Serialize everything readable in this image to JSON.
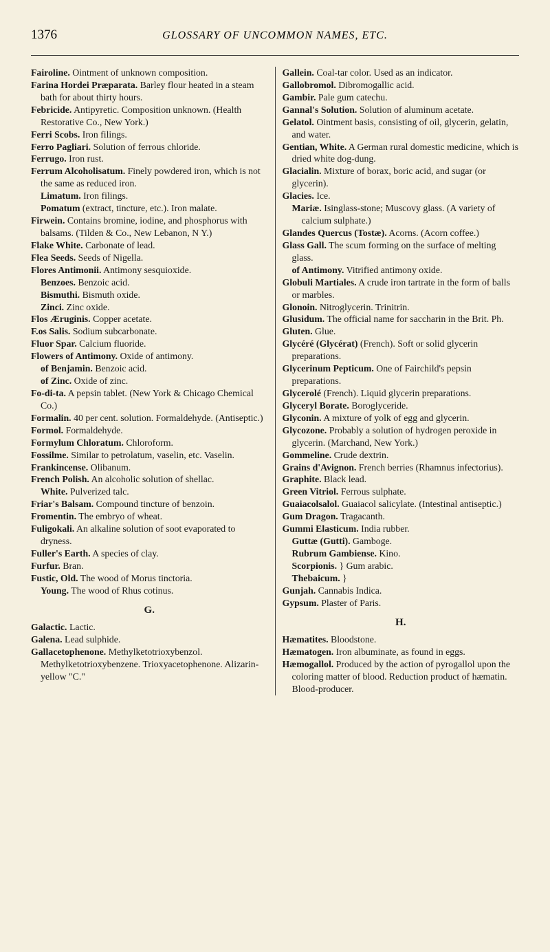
{
  "pageNumber": "1376",
  "runningTitle": "GLOSSARY OF UNCOMMON NAMES, ETC.",
  "left": {
    "entries": [
      {
        "t": "entry",
        "html": "<b>Fairoline.</b> Ointment of unknown composition."
      },
      {
        "t": "entry",
        "html": "<b>Farina Hordei Præparata.</b> Barley flour heated in a steam bath for about thirty hours."
      },
      {
        "t": "entry",
        "html": "<b>Febricide.</b> Antipyretic. Composition unknown. (Health Restorative Co., New York.)"
      },
      {
        "t": "entry",
        "html": "<b>Ferri Scobs.</b> Iron filings."
      },
      {
        "t": "entry",
        "html": "<b>Ferro Pagliari.</b> Solution of ferrous chloride."
      },
      {
        "t": "entry",
        "html": "<b>Ferrugo.</b> Iron rust."
      },
      {
        "t": "entry",
        "html": "<b>Ferrum Alcoholisatum.</b> Finely powdered iron, which is not the same as reduced iron."
      },
      {
        "t": "sub",
        "html": "<b>Limatum.</b> Iron filings."
      },
      {
        "t": "sub",
        "html": "<b>Pomatum</b> (extract, tincture, etc.). Iron malate."
      },
      {
        "t": "entry",
        "html": "<b>Firwein.</b> Contains bromine, iodine, and phosphorus with balsams. (Tilden & Co., New Lebanon, N Y.)"
      },
      {
        "t": "entry",
        "html": "<b>Flake White.</b> Carbonate of lead."
      },
      {
        "t": "entry",
        "html": "<b>Flea Seeds.</b> Seeds of Nigella."
      },
      {
        "t": "entry",
        "html": "<b>Flores Antimonii.</b> Antimony sesquioxide."
      },
      {
        "t": "sub",
        "html": "<b>Benzoes.</b> Benzoic acid."
      },
      {
        "t": "sub",
        "html": "<b>Bismuthi.</b> Bismuth oxide."
      },
      {
        "t": "sub",
        "html": "<b>Zinci.</b> Zinc oxide."
      },
      {
        "t": "entry",
        "html": "<b>Flos Æruginis.</b> Copper acetate."
      },
      {
        "t": "entry",
        "html": "<b>F.os Salis.</b> Sodium subcarbonate."
      },
      {
        "t": "entry",
        "html": "<b>Fluor Spar.</b> Calcium fluoride."
      },
      {
        "t": "entry",
        "html": "<b>Flowers of Antimony.</b> Oxide of antimony."
      },
      {
        "t": "sub",
        "html": "<b>of Benjamin.</b> Benzoic acid."
      },
      {
        "t": "sub",
        "html": "<b>of Zinc.</b> Oxide of zinc."
      },
      {
        "t": "entry",
        "html": "<b>Fo-di-ta.</b> A pepsin tablet. (New York & Chicago Chemical Co.)"
      },
      {
        "t": "entry",
        "html": "<b>Formalin.</b> 40 per cent. solution. Formaldehyde. (Antiseptic.)"
      },
      {
        "t": "entry",
        "html": "<b>Formol.</b> Formaldehyde."
      },
      {
        "t": "entry",
        "html": "<b>Formylum Chloratum.</b> Chloroform."
      },
      {
        "t": "entry",
        "html": "<b>Fossilme.</b> Similar to petrolatum, vaselin, etc. Vaselin."
      },
      {
        "t": "entry",
        "html": "<b>Frankincense.</b> Olibanum."
      },
      {
        "t": "entry",
        "html": "<b>French Polish.</b> An alcoholic solution of shellac."
      },
      {
        "t": "sub",
        "html": "<b>White.</b> Pulverized talc."
      },
      {
        "t": "entry",
        "html": "<b>Friar's Balsam.</b> Compound tincture of benzoin."
      },
      {
        "t": "entry",
        "html": "<b>Fromentin.</b> The embryo of wheat."
      },
      {
        "t": "entry",
        "html": "<b>Fuligokali.</b> An alkaline solution of soot evaporated to dryness."
      },
      {
        "t": "entry",
        "html": "<b>Fuller's Earth.</b> A species of clay."
      },
      {
        "t": "entry",
        "html": "<b>Furfur.</b> Bran."
      },
      {
        "t": "entry",
        "html": "<b>Fustic, Old.</b> The wood of Morus tinctoria."
      },
      {
        "t": "sub",
        "html": "<b>Young.</b> The wood of Rhus cotinus."
      }
    ],
    "sectionLetter": "G.",
    "entriesG": [
      {
        "t": "entry",
        "html": "<b>Galactic.</b> Lactic."
      },
      {
        "t": "entry",
        "html": "<b>Galena.</b> Lead sulphide."
      },
      {
        "t": "entry",
        "html": "<b>Gallacetophenone.</b> Methylketotrioxybenzol. Methylketotrioxybenzene. Trioxyacetophenone. Alizarin-yellow \"C.\""
      }
    ]
  },
  "right": {
    "entries": [
      {
        "t": "entry",
        "html": "<b>Gallein.</b> Coal-tar color. Used as an indicator."
      },
      {
        "t": "entry",
        "html": "<b>Gallobromol.</b> Dibromogallic acid."
      },
      {
        "t": "entry",
        "html": "<b>Gambir.</b> Pale gum catechu."
      },
      {
        "t": "entry",
        "html": "<b>Gannal's Solution.</b> Solution of aluminum acetate."
      },
      {
        "t": "entry",
        "html": "<b>Gelatol.</b> Ointment basis, consisting of oil, glycerin, gelatin, and water."
      },
      {
        "t": "entry",
        "html": "<b>Gentian, White.</b> A German rural domestic medicine, which is dried white dog-dung."
      },
      {
        "t": "entry",
        "html": "<b>Glacialin.</b> Mixture of borax, boric acid, and sugar (or glycerin)."
      },
      {
        "t": "entry",
        "html": "<b>Glacies.</b> Ice."
      },
      {
        "t": "sub",
        "html": "<b>Mariæ.</b> Isinglass-stone; Muscovy glass. (A variety of calcium sulphate.)"
      },
      {
        "t": "entry",
        "html": "<b>Glandes Quercus (Tostæ).</b> Acorns. (Acorn coffee.)"
      },
      {
        "t": "entry",
        "html": "<b>Glass Gall.</b> The scum forming on the surface of melting glass."
      },
      {
        "t": "sub",
        "html": "<b>of Antimony.</b> Vitrified antimony oxide."
      },
      {
        "t": "entry",
        "html": "<b>Globuli Martiales.</b> A crude iron tartrate in the form of balls or marbles."
      },
      {
        "t": "entry",
        "html": "<b>Glonoin.</b> Nitroglycerin. Trinitrin."
      },
      {
        "t": "entry",
        "html": "<b>Glusidum.</b> The official name for saccharin in the Brit. Ph."
      },
      {
        "t": "entry",
        "html": "<b>Gluten.</b> Glue."
      },
      {
        "t": "entry",
        "html": "<b>Glycéré (Glycérat)</b> (French). Soft or solid glycerin preparations."
      },
      {
        "t": "entry",
        "html": "<b>Glycerinum Pepticum.</b> One of Fairchild's pepsin preparations."
      },
      {
        "t": "entry",
        "html": "<b>Glycerolé</b> (French). Liquid glycerin preparations."
      },
      {
        "t": "entry",
        "html": "<b>Glyceryl Borate.</b> Boroglyceride."
      },
      {
        "t": "entry",
        "html": "<b>Glyconin.</b> A mixture of yolk of egg and glycerin."
      },
      {
        "t": "entry",
        "html": "<b>Glycozone.</b> Probably a solution of hydrogen peroxide in glycerin. (Marchand, New York.)"
      },
      {
        "t": "entry",
        "html": "<b>Gommeline.</b> Crude dextrin."
      },
      {
        "t": "entry",
        "html": "<b>Grains d'Avignon.</b> French berries (Rhamnus infectorius)."
      },
      {
        "t": "entry",
        "html": "<b>Graphite.</b> Black lead."
      },
      {
        "t": "entry",
        "html": "<b>Green Vitriol.</b> Ferrous sulphate."
      },
      {
        "t": "entry",
        "html": "<b>Guaiacolsalol.</b> Guaiacol salicylate. (Intestinal antiseptic.)"
      },
      {
        "t": "entry",
        "html": "<b>Gum Dragon.</b> Tragacanth."
      },
      {
        "t": "entry",
        "html": "<b>Gummi Elasticum.</b> India rubber."
      },
      {
        "t": "sub",
        "html": "<b>Guttæ (Gutti).</b> Gamboge."
      },
      {
        "t": "sub",
        "html": "<b>Rubrum Gambiense.</b> Kino."
      },
      {
        "t": "sub",
        "html": "<b>Scorpionis.</b> } Gum arabic."
      },
      {
        "t": "sub",
        "html": "<b>Thebaicum.</b> }"
      },
      {
        "t": "entry",
        "html": "<b>Gunjah.</b> Cannabis Indica."
      },
      {
        "t": "entry",
        "html": "<b>Gypsum.</b> Plaster of Paris."
      }
    ],
    "sectionLetter": "H.",
    "entriesH": [
      {
        "t": "entry",
        "html": "<b>Hæmatites.</b> Bloodstone."
      },
      {
        "t": "entry",
        "html": "<b>Hæmatogen.</b> Iron albuminate, as found in eggs."
      },
      {
        "t": "entry",
        "html": "<b>Hæmogallol.</b> Produced by the action of pyrogallol upon the coloring matter of blood. Reduction product of hæmatin. Blood-producer."
      }
    ]
  }
}
